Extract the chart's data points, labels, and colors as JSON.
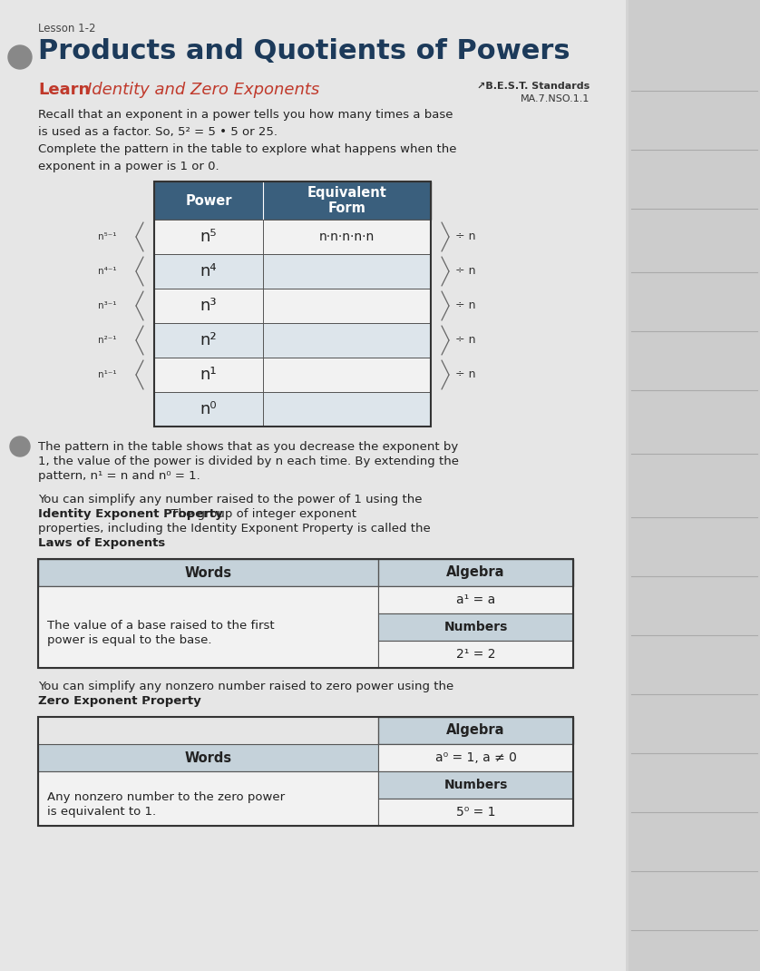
{
  "lesson_label": "Lesson 1-2",
  "title": "Products and Quotients of Powers",
  "learn_label": "Learn",
  "learn_subtitle": "Identity and Zero Exponents",
  "best_standards_label": "↗B.E.S.T. Standards",
  "best_standards_code": "MA.7.NSO.1.1",
  "intro_text1": "Recall that an exponent in a power tells you how many times a base\nis used as a factor. So, 5² = 5 • 5 or 25.",
  "intro_text2": "Complete the pattern in the table to explore what happens when the\nexponent in a power is 1 or 0.",
  "table1_headers": [
    "Power",
    "Equivalent\nForm"
  ],
  "table1_col1": [
    "n⁵",
    "n⁴",
    "n³",
    "n²",
    "n¹",
    "n⁰"
  ],
  "table1_col2_row0": "n·n·n·n·n",
  "table1_left_labels": [
    "n⁵⁻¹",
    "n⁴⁻¹",
    "n³⁻¹",
    "n²⁻¹",
    "n¹⁻¹"
  ],
  "table1_right_labels": [
    "÷ n",
    "÷ n",
    "÷ n",
    "÷ n",
    "÷ n"
  ],
  "pattern_text_line1": "The pattern in the table shows that as you decrease the exponent by",
  "pattern_text_line2": "1, the value of the power is divided by n each time. By extending the",
  "pattern_text_line3": "pattern, n¹ = n and n⁰ = 1.",
  "identity_lines": [
    [
      [
        "You can simplify any number raised to the power of 1 using the",
        false
      ]
    ],
    [
      [
        "Identity Exponent Property",
        true
      ],
      [
        ". The group of integer exponent",
        false
      ]
    ],
    [
      [
        "properties, including the Identity Exponent Property is called the",
        false
      ]
    ],
    [
      [
        "Laws of Exponents",
        true
      ],
      [
        ".",
        false
      ]
    ]
  ],
  "table2_header_col1": "Words",
  "table2_header_col2": "Algebra",
  "table2_row1_col1_line1": "The value of a base raised to the first",
  "table2_row1_col1_line2": "power is equal to the base.",
  "table2_algebra": "a¹ = a",
  "table2_numbers_label": "Numbers",
  "table2_numbers_val": "2¹ = 2",
  "zero_lines": [
    [
      [
        "You can simplify any nonzero number raised to zero power using the",
        false
      ]
    ],
    [
      [
        "Zero Exponent Property",
        true
      ],
      [
        ".",
        false
      ]
    ]
  ],
  "table3_header_col2": "Algebra",
  "table3_header_col1": "Words",
  "table3_row1_col1_line1": "Any nonzero number to the zero power",
  "table3_row1_col1_line2": "is equivalent to 1.",
  "table3_algebra": "a⁰ = 1, a ≠ 0",
  "table3_numbers_label": "Numbers",
  "table3_numbers_val": "5⁰ = 1",
  "bg_color": "#d4d4d4",
  "content_bg": "#e6e6e6",
  "right_panel_bg": "#cccccc",
  "table_header_bg": "#3a5f7d",
  "table_row_light": "#f2f2f2",
  "table_row_med": "#dde5eb",
  "table2_header_bg": "#c5d2da",
  "table2_row_dark": "#c5d2da",
  "table2_row_light": "#f2f2f2",
  "title_color": "#1c3a5a",
  "learn_color": "#c0392b",
  "text_color": "#222222",
  "line_color": "#999999",
  "border_color": "#555555"
}
